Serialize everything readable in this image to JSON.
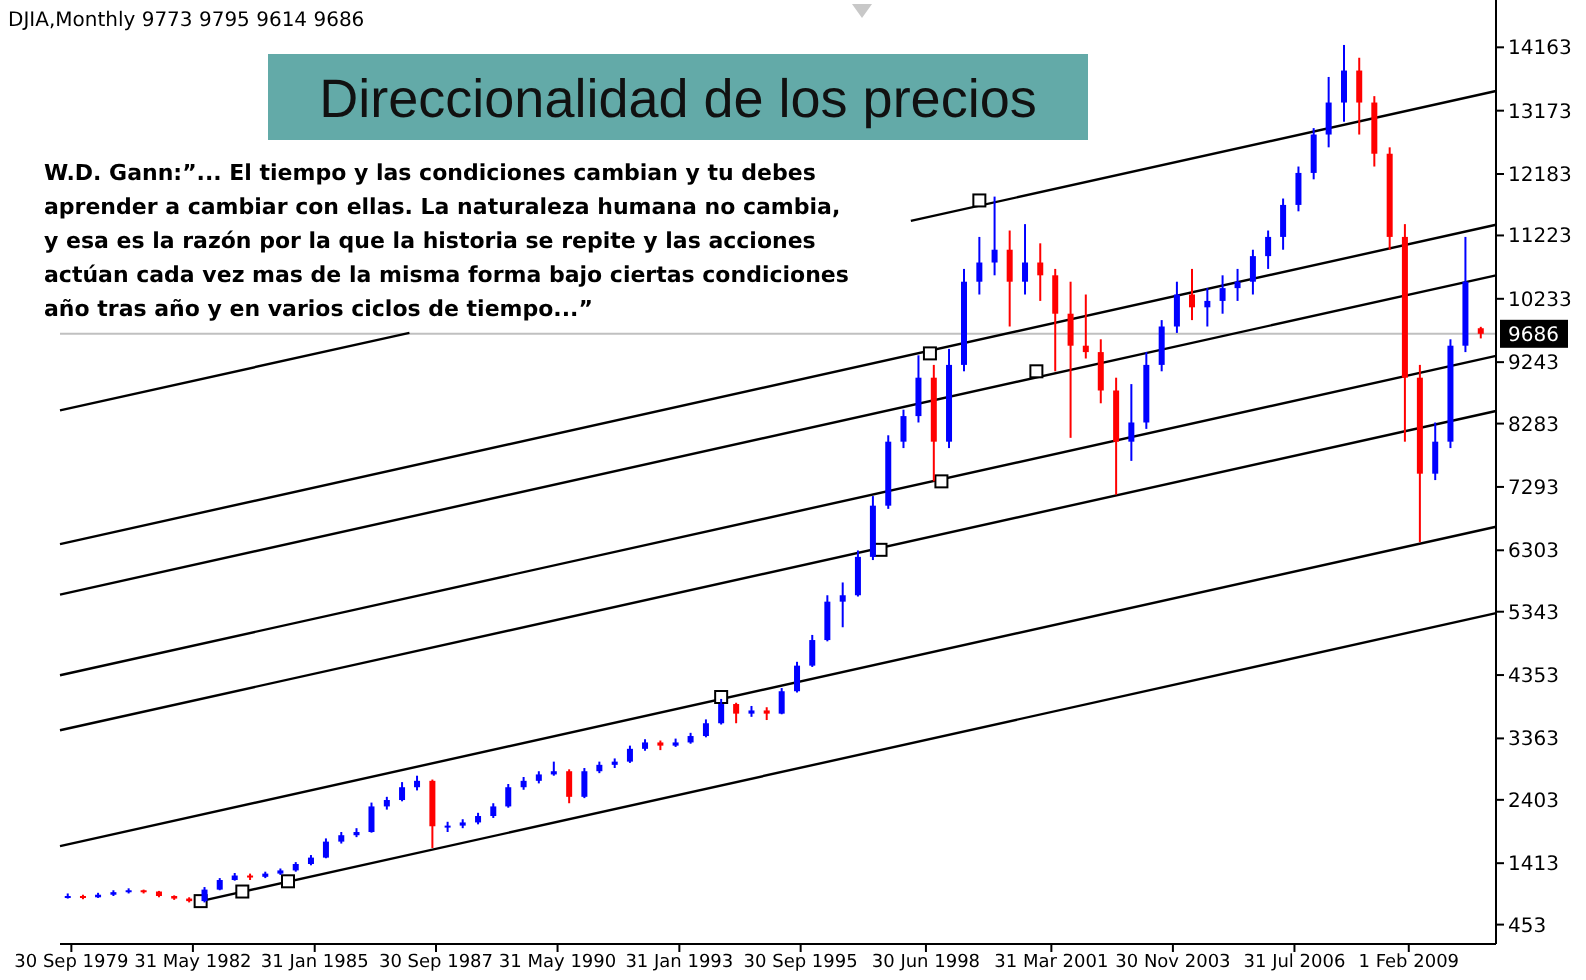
{
  "chart_data": {
    "type": "candlestick",
    "title": "Direccionalidad de los precios",
    "subtitle": "DJIA,Monthly  9773 9795 9614 9686",
    "annotations": [
      "W.D. Gann:”... El tiempo y las condiciones cambian y tu debes\naprender a cambiar con ellas. La naturaleza humana no cambia,\ny esa es la razón por la que la historia se repite y las acciones\nactúan cada vez mas de la misma forma bajo ciertas condiciones\naño tras año y en varios ciclos de tiempo...”"
    ],
    "x": [
      "1979-09",
      "1980-01",
      "1980-05",
      "1980-09",
      "1981-01",
      "1981-05",
      "1981-09",
      "1982-01",
      "1982-05",
      "1982-09",
      "1983-01",
      "1983-05",
      "1983-09",
      "1984-01",
      "1984-05",
      "1984-09",
      "1985-01",
      "1985-05",
      "1985-09",
      "1986-01",
      "1986-05",
      "1986-09",
      "1987-01",
      "1987-05",
      "1987-09",
      "1988-01",
      "1988-05",
      "1988-09",
      "1989-01",
      "1989-05",
      "1989-09",
      "1990-01",
      "1990-05",
      "1990-09",
      "1991-01",
      "1991-05",
      "1991-09",
      "1992-01",
      "1992-05",
      "1992-09",
      "1993-01",
      "1993-05",
      "1993-09",
      "1994-01",
      "1994-05",
      "1994-09",
      "1995-01",
      "1995-05",
      "1995-09",
      "1996-01",
      "1996-05",
      "1996-09",
      "1997-01",
      "1997-05",
      "1997-09",
      "1998-01",
      "1998-05",
      "1998-09",
      "1999-01",
      "1999-05",
      "1999-09",
      "2000-01",
      "2000-05",
      "2000-09",
      "2001-01",
      "2001-05",
      "2001-09",
      "2002-01",
      "2002-05",
      "2002-09",
      "2003-01",
      "2003-05",
      "2003-09",
      "2004-01",
      "2004-05",
      "2004-09",
      "2005-01",
      "2005-05",
      "2005-09",
      "2006-01",
      "2006-05",
      "2006-09",
      "2007-01",
      "2007-05",
      "2007-09",
      "2008-01",
      "2008-05",
      "2008-09",
      "2009-01",
      "2009-05",
      "2009-09",
      "2010-01",
      "2010-05",
      "2010-09"
    ],
    "ohlc": [
      [
        880,
        940,
        860,
        900
      ],
      [
        900,
        920,
        850,
        880
      ],
      [
        880,
        950,
        870,
        920
      ],
      [
        920,
        990,
        900,
        960
      ],
      [
        960,
        1020,
        940,
        990
      ],
      [
        990,
        1000,
        940,
        970
      ],
      [
        970,
        980,
        880,
        900
      ],
      [
        900,
        910,
        840,
        860
      ],
      [
        860,
        880,
        800,
        820
      ],
      [
        820,
        1040,
        800,
        1000
      ],
      [
        1000,
        1180,
        990,
        1150
      ],
      [
        1150,
        1260,
        1140,
        1220
      ],
      [
        1220,
        1250,
        1150,
        1200
      ],
      [
        1200,
        1280,
        1180,
        1250
      ],
      [
        1250,
        1330,
        1230,
        1300
      ],
      [
        1300,
        1430,
        1280,
        1400
      ],
      [
        1400,
        1540,
        1380,
        1500
      ],
      [
        1500,
        1800,
        1490,
        1750
      ],
      [
        1750,
        1900,
        1720,
        1850
      ],
      [
        1850,
        1960,
        1820,
        1900
      ],
      [
        1900,
        2360,
        1890,
        2300
      ],
      [
        2300,
        2450,
        2250,
        2400
      ],
      [
        2400,
        2680,
        2380,
        2600
      ],
      [
        2600,
        2780,
        2550,
        2700
      ],
      [
        2700,
        2720,
        1650,
        1990
      ],
      [
        1990,
        2060,
        1900,
        2000
      ],
      [
        2000,
        2100,
        1960,
        2050
      ],
      [
        2050,
        2200,
        2020,
        2150
      ],
      [
        2150,
        2350,
        2120,
        2300
      ],
      [
        2300,
        2650,
        2280,
        2600
      ],
      [
        2600,
        2760,
        2560,
        2700
      ],
      [
        2700,
        2850,
        2660,
        2800
      ],
      [
        2800,
        3000,
        2780,
        2850
      ],
      [
        2850,
        2880,
        2350,
        2450
      ],
      [
        2450,
        2900,
        2430,
        2850
      ],
      [
        2850,
        3000,
        2820,
        2950
      ],
      [
        2950,
        3050,
        2900,
        3000
      ],
      [
        3000,
        3250,
        2980,
        3200
      ],
      [
        3200,
        3350,
        3170,
        3300
      ],
      [
        3300,
        3330,
        3180,
        3250
      ],
      [
        3250,
        3360,
        3230,
        3300
      ],
      [
        3300,
        3450,
        3280,
        3400
      ],
      [
        3400,
        3660,
        3380,
        3600
      ],
      [
        3600,
        3980,
        3580,
        3900
      ],
      [
        3900,
        3920,
        3600,
        3750
      ],
      [
        3750,
        3870,
        3700,
        3800
      ],
      [
        3800,
        3850,
        3650,
        3750
      ],
      [
        3750,
        4150,
        3740,
        4100
      ],
      [
        4100,
        4560,
        4080,
        4500
      ],
      [
        4500,
        4980,
        4480,
        4900
      ],
      [
        4900,
        5600,
        4880,
        5500
      ],
      [
        5500,
        5800,
        5100,
        5600
      ],
      [
        5600,
        6300,
        5580,
        6200
      ],
      [
        6200,
        7150,
        6150,
        7000
      ],
      [
        7000,
        8100,
        6950,
        8000
      ],
      [
        8000,
        8500,
        7900,
        8400
      ],
      [
        8400,
        9350,
        8300,
        9000
      ],
      [
        9000,
        9200,
        7380,
        8000
      ],
      [
        8000,
        9450,
        7900,
        9200
      ],
      [
        9200,
        10700,
        9100,
        10500
      ],
      [
        10500,
        11200,
        10300,
        10800
      ],
      [
        10800,
        11830,
        10600,
        11000
      ],
      [
        11000,
        11300,
        9800,
        10500
      ],
      [
        10500,
        11400,
        10300,
        10800
      ],
      [
        10800,
        11100,
        10200,
        10600
      ],
      [
        10600,
        10700,
        9100,
        10000
      ],
      [
        10000,
        10500,
        8060,
        9500
      ],
      [
        9500,
        10300,
        9300,
        9400
      ],
      [
        9400,
        9600,
        8600,
        8800
      ],
      [
        8800,
        9000,
        7170,
        8000
      ],
      [
        8000,
        8900,
        7700,
        8300
      ],
      [
        8300,
        9400,
        8200,
        9200
      ],
      [
        9200,
        9900,
        9100,
        9800
      ],
      [
        9800,
        10500,
        9700,
        10300
      ],
      [
        10300,
        10700,
        9900,
        10100
      ],
      [
        10100,
        10400,
        9800,
        10200
      ],
      [
        10200,
        10600,
        10000,
        10400
      ],
      [
        10400,
        10700,
        10200,
        10500
      ],
      [
        10500,
        11000,
        10300,
        10900
      ],
      [
        10900,
        11300,
        10700,
        11200
      ],
      [
        11200,
        11800,
        11000,
        11700
      ],
      [
        11700,
        12300,
        11600,
        12200
      ],
      [
        12200,
        12900,
        12100,
        12800
      ],
      [
        12800,
        13700,
        12600,
        13300
      ],
      [
        13300,
        14200,
        13000,
        13800
      ],
      [
        13800,
        14000,
        12800,
        13300
      ],
      [
        13300,
        13400,
        12300,
        12500
      ],
      [
        12500,
        12600,
        11000,
        11200
      ],
      [
        11200,
        11400,
        8000,
        9000
      ],
      [
        9000,
        9200,
        6430,
        7500
      ],
      [
        7500,
        8300,
        7400,
        8000
      ],
      [
        8000,
        9600,
        7900,
        9500
      ],
      [
        9500,
        11200,
        9400,
        10500
      ],
      [
        9773,
        9795,
        9614,
        9686
      ]
    ],
    "colors": [
      "#0000ff",
      "#ff0000",
      "#0000ff",
      "#0000ff",
      "#0000ff",
      "#ff0000",
      "#ff0000",
      "#ff0000",
      "#ff0000",
      "#0000ff",
      "#0000ff",
      "#0000ff",
      "#ff0000",
      "#0000ff",
      "#0000ff",
      "#0000ff",
      "#0000ff",
      "#0000ff",
      "#0000ff",
      "#0000ff",
      "#0000ff",
      "#0000ff",
      "#0000ff",
      "#0000ff",
      "#ff0000",
      "#0000ff",
      "#0000ff",
      "#0000ff",
      "#0000ff",
      "#0000ff",
      "#0000ff",
      "#0000ff",
      "#0000ff",
      "#ff0000",
      "#0000ff",
      "#0000ff",
      "#0000ff",
      "#0000ff",
      "#0000ff",
      "#ff0000",
      "#0000ff",
      "#0000ff",
      "#0000ff",
      "#0000ff",
      "#ff0000",
      "#0000ff",
      "#ff0000",
      "#0000ff",
      "#0000ff",
      "#0000ff",
      "#0000ff",
      "#0000ff",
      "#0000ff",
      "#0000ff",
      "#0000ff",
      "#0000ff",
      "#0000ff",
      "#ff0000",
      "#0000ff",
      "#0000ff",
      "#0000ff",
      "#0000ff",
      "#ff0000",
      "#0000ff",
      "#ff0000",
      "#ff0000",
      "#ff0000",
      "#ff0000",
      "#ff0000",
      "#ff0000",
      "#0000ff",
      "#0000ff",
      "#0000ff",
      "#0000ff",
      "#ff0000",
      "#0000ff",
      "#0000ff",
      "#0000ff",
      "#0000ff",
      "#0000ff",
      "#0000ff",
      "#0000ff",
      "#0000ff",
      "#0000ff",
      "#0000ff",
      "#ff0000",
      "#ff0000",
      "#ff0000",
      "#ff0000",
      "#ff0000",
      "#0000ff",
      "#0000ff",
      "#0000ff",
      "#ff0000"
    ],
    "series": [
      {
        "type": "line",
        "color": "#000000",
        "x": [
          "1979-07",
          "1987-03",
          "1992-01",
          "1998-03",
          "2011-01"
        ],
        "values": [
          8490,
          9700,
          null,
          11450,
          13480
        ]
      },
      {
        "type": "line",
        "color": "#000000",
        "x": [
          "1979-07",
          "2011-01"
        ],
        "values": [
          6400,
          11390
        ]
      },
      {
        "type": "line",
        "color": "#000000",
        "x": [
          "1979-07",
          "2011-01"
        ],
        "values": [
          5610,
          10600
        ]
      },
      {
        "type": "line",
        "color": "#000000",
        "x": [
          "1979-07",
          "2011-01"
        ],
        "values": [
          4350,
          9340
        ]
      },
      {
        "type": "line",
        "color": "#000000",
        "x": [
          "1979-07",
          "2011-01"
        ],
        "values": [
          3490,
          8480
        ]
      },
      {
        "type": "line",
        "color": "#000000",
        "x": [
          "1979-07",
          "2011-01"
        ],
        "values": [
          1680,
          6670
        ]
      },
      {
        "type": "line",
        "color": "#000000",
        "x": [
          "1982-08",
          "2011-01"
        ],
        "values": [
          820,
          5320
        ]
      },
      {
        "type": "scatter",
        "color": "#000000",
        "marker": "square",
        "x": [
          "1982-08",
          "1983-07",
          "1984-07",
          "1994-01",
          "1997-07",
          "1998-08",
          "1998-11",
          "1999-09",
          "2000-12"
        ],
        "values": [
          820,
          970,
          1130,
          4010,
          6310,
          9380,
          7380,
          11770,
          9100
        ]
      }
    ],
    "ref_lines": [
      {
        "axis": "y",
        "value": 9686,
        "label": "9686",
        "color": "#c0c0c0"
      }
    ],
    "xlim": [
      "1979-07",
      "2011-01"
    ],
    "xticks": [
      {
        "value": "1979-09-30",
        "label": "30 Sep 1979"
      },
      {
        "value": "1982-05-31",
        "label": "31 May 1982"
      },
      {
        "value": "1985-01-31",
        "label": "31 Jan 1985"
      },
      {
        "value": "1987-09-30",
        "label": "30 Sep 1987"
      },
      {
        "value": "1990-05-31",
        "label": "31 May 1990"
      },
      {
        "value": "1993-01-31",
        "label": "31 Jan 1993"
      },
      {
        "value": "1995-09-30",
        "label": "30 Sep 1995"
      },
      {
        "value": "1998-06-30",
        "label": "30 Jun 1998"
      },
      {
        "value": "2001-03-31",
        "label": "31 Mar 2001"
      },
      {
        "value": "2003-11-30",
        "label": "30 Nov 2003"
      },
      {
        "value": "2006-07-31",
        "label": "31 Jul 2006"
      },
      {
        "value": "2009-02-01",
        "label": "1 Feb 2009"
      }
    ],
    "ylim": [
      150,
      14840
    ],
    "yticks": [
      453,
      1413,
      2403,
      3363,
      4353,
      5343,
      6303,
      7293,
      8283,
      9243,
      10233,
      11223,
      12183,
      13173,
      14163
    ]
  }
}
